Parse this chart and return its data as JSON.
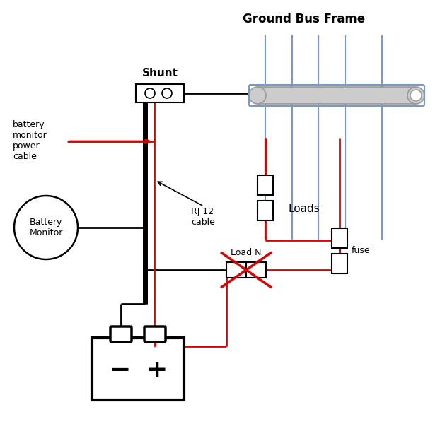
{
  "title": "Ground Bus Frame",
  "background": "#ffffff",
  "figsize": [
    6.22,
    6.0
  ],
  "dpi": 100,
  "colors": {
    "black": "#000000",
    "red": "#dd0000",
    "blue": "#7799cc",
    "gray": "#aaaaaa",
    "light_gray": "#cccccc",
    "white": "#ffffff"
  },
  "labels": {
    "shunt": "Shunt",
    "battery_monitor": "Battery\nMonitor",
    "battery_monitor_power_cable": "battery\nmonitor\npower\ncable",
    "rj12": "RJ 12\ncable",
    "load_n": "Load N",
    "loads": "Loads",
    "fuse": "fuse",
    "ground_bus": "Ground Bus Frame"
  }
}
